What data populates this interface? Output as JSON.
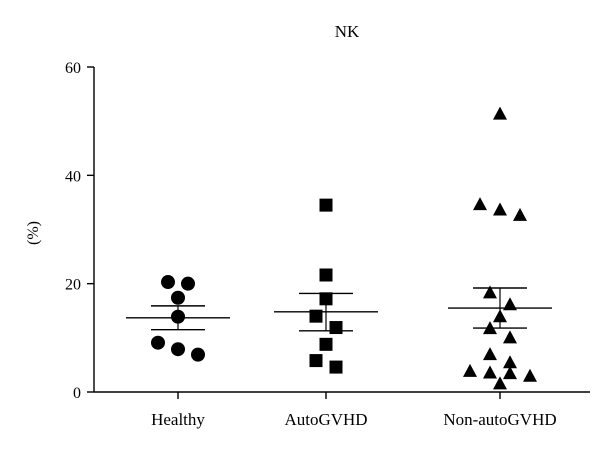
{
  "chart_data": {
    "type": "scatter",
    "title": "NK",
    "xlabel": "",
    "ylabel": "(%)",
    "ylim": [
      0,
      60
    ],
    "yticks": [
      0,
      20,
      40,
      60
    ],
    "grid": false,
    "categories": [
      "Healthy",
      "AutoGVHD",
      "Non-autoGVHD"
    ],
    "series": [
      {
        "category": "Healthy",
        "marker": "circle",
        "values": [
          20.3,
          20.0,
          17.4,
          13.9,
          9.1,
          7.9,
          6.9
        ],
        "mean": 13.7,
        "sem_low": 11.5,
        "sem_high": 15.9
      },
      {
        "category": "AutoGVHD",
        "marker": "square",
        "values": [
          34.5,
          21.6,
          17.2,
          14.0,
          11.9,
          8.8,
          5.8,
          4.6
        ],
        "mean": 14.8,
        "sem_low": 11.3,
        "sem_high": 18.2
      },
      {
        "category": "Non-autoGVHD",
        "marker": "triangle",
        "values": [
          51.2,
          34.5,
          33.5,
          32.5,
          18.2,
          16.0,
          13.8,
          11.6,
          9.9,
          6.8,
          5.3,
          3.7,
          3.4,
          3.3,
          2.8,
          1.4
        ],
        "mean": 15.5,
        "sem_low": 11.8,
        "sem_high": 19.2
      }
    ]
  }
}
